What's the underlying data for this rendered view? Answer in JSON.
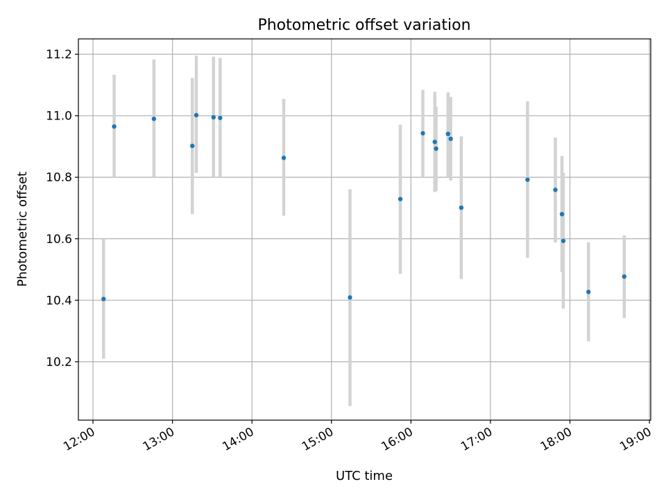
{
  "chart_data": {
    "type": "scatter",
    "title": "Photometric offset variation",
    "xlabel": "UTC time",
    "ylabel": "Photometric offset",
    "x_ticks": [
      "12:00",
      "13:00",
      "14:00",
      "15:00",
      "16:00",
      "17:00",
      "18:00",
      "19:00"
    ],
    "y_ticks": [
      "10.2",
      "10.4",
      "10.6",
      "10.8",
      "11.0",
      "11.2"
    ],
    "xlim": [
      "11:49",
      "19:01"
    ],
    "ylim": [
      10.01,
      11.25
    ],
    "grid": true,
    "colors": {
      "marker": "#1f77b4",
      "errorbar": "#d3d3d3",
      "grid": "#b0b0b0"
    },
    "points": [
      {
        "x": "12:08",
        "y": 10.404,
        "ylow": 10.21,
        "yhigh": 10.6
      },
      {
        "x": "12:16",
        "y": 10.965,
        "ylow": 10.8,
        "yhigh": 11.133
      },
      {
        "x": "12:46",
        "y": 10.99,
        "ylow": 10.8,
        "yhigh": 11.183
      },
      {
        "x": "13:15",
        "y": 10.902,
        "ylow": 10.68,
        "yhigh": 11.123
      },
      {
        "x": "13:18",
        "y": 11.002,
        "ylow": 10.814,
        "yhigh": 11.195
      },
      {
        "x": "13:31",
        "y": 10.995,
        "ylow": 10.8,
        "yhigh": 11.192
      },
      {
        "x": "13:36",
        "y": 10.993,
        "ylow": 10.8,
        "yhigh": 11.188
      },
      {
        "x": "14:24",
        "y": 10.863,
        "ylow": 10.675,
        "yhigh": 11.055
      },
      {
        "x": "15:14",
        "y": 10.409,
        "ylow": 10.056,
        "yhigh": 10.761
      },
      {
        "x": "15:52",
        "y": 10.729,
        "ylow": 10.486,
        "yhigh": 10.971
      },
      {
        "x": "16:09",
        "y": 10.943,
        "ylow": 10.8,
        "yhigh": 11.084
      },
      {
        "x": "16:18",
        "y": 10.915,
        "ylow": 10.752,
        "yhigh": 11.078
      },
      {
        "x": "16:19",
        "y": 10.893,
        "ylow": 10.755,
        "yhigh": 11.03
      },
      {
        "x": "16:28",
        "y": 10.941,
        "ylow": 10.8,
        "yhigh": 11.076
      },
      {
        "x": "16:30",
        "y": 10.925,
        "ylow": 10.789,
        "yhigh": 11.061
      },
      {
        "x": "16:38",
        "y": 10.701,
        "ylow": 10.469,
        "yhigh": 10.933
      },
      {
        "x": "17:28",
        "y": 10.792,
        "ylow": 10.538,
        "yhigh": 11.047
      },
      {
        "x": "17:49",
        "y": 10.759,
        "ylow": 10.588,
        "yhigh": 10.929
      },
      {
        "x": "17:54",
        "y": 10.68,
        "ylow": 10.491,
        "yhigh": 10.869
      },
      {
        "x": "17:55",
        "y": 10.593,
        "ylow": 10.373,
        "yhigh": 10.814
      },
      {
        "x": "18:14",
        "y": 10.427,
        "ylow": 10.266,
        "yhigh": 10.588
      },
      {
        "x": "18:41",
        "y": 10.477,
        "ylow": 10.342,
        "yhigh": 10.611
      }
    ]
  }
}
